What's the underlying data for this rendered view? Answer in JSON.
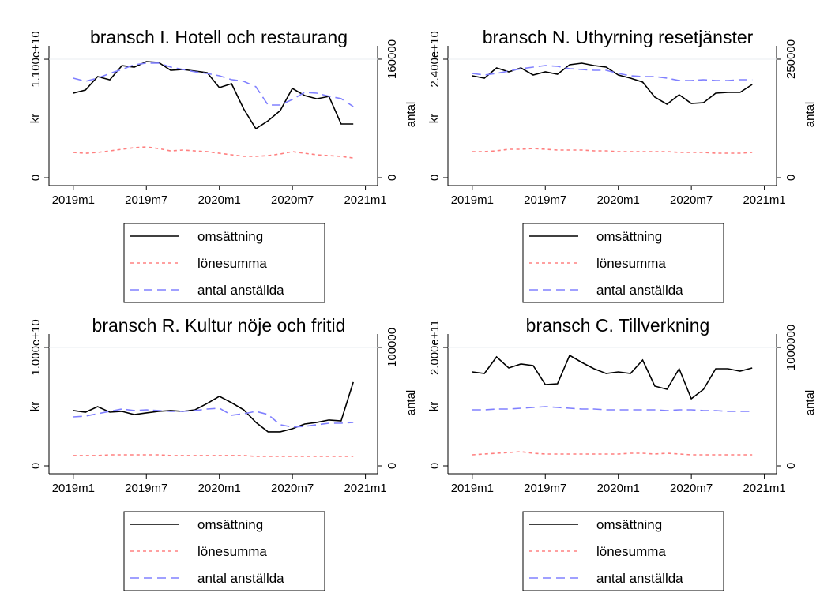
{
  "chart_data": [
    {
      "type": "line",
      "title": "bransch I. Hotell och restaurang",
      "ylabel": "kr",
      "y2label": "antal",
      "x": [
        "2019m1",
        "2019m2",
        "2019m3",
        "2019m4",
        "2019m5",
        "2019m6",
        "2019m7",
        "2019m8",
        "2019m9",
        "2019m10",
        "2019m11",
        "2019m12",
        "2020m1",
        "2020m2",
        "2020m3",
        "2020m4",
        "2020m5",
        "2020m6",
        "2020m7",
        "2020m8",
        "2020m9",
        "2020m10",
        "2020m11",
        "2020m12"
      ],
      "xlim": [
        "2018m11",
        "2021m2"
      ],
      "xticks": [
        "2019m1",
        "2019m7",
        "2020m1",
        "2020m7",
        "2021m1"
      ],
      "ylim": [
        -730000000,
        12250000000
      ],
      "yticks": [
        0,
        {
          "value": 11000000000,
          "label": "1.100e+10"
        }
      ],
      "y2lim": [
        -10667,
        178100
      ],
      "y2ticks": [
        0,
        160000
      ],
      "grid": true,
      "series": [
        {
          "name": "omsättning",
          "color": "#000000",
          "dash": "solid",
          "values": [
            7850000000,
            8140000000,
            9390000000,
            9090000000,
            10410000000,
            10270000000,
            10780000000,
            10710000000,
            9970000000,
            10050000000,
            9900000000,
            9750000000,
            8360000000,
            8730000000,
            6380000000,
            4550000000,
            5280000000,
            6230000000,
            8290000000,
            7630000000,
            7330000000,
            7550000000,
            4990000000,
            4990000000
          ]
        },
        {
          "name": "lönesumma",
          "color": "#ff8080",
          "dash": "short",
          "values": [
            2350000000,
            2270000000,
            2350000000,
            2490000000,
            2640000000,
            2790000000,
            2860000000,
            2710000000,
            2490000000,
            2570000000,
            2490000000,
            2420000000,
            2270000000,
            2130000000,
            1980000000,
            1980000000,
            2050000000,
            2200000000,
            2420000000,
            2270000000,
            2130000000,
            2050000000,
            1980000000,
            1830000000
          ]
        },
        {
          "name": "antal anställda",
          "color": "#8080ff",
          "dash": "long",
          "axis": "y2",
          "values": [
            134400,
            130100,
            134400,
            140800,
            146100,
            152500,
            154700,
            154700,
            149300,
            146100,
            142900,
            140800,
            137600,
            132300,
            130100,
            122700,
            98100,
            98100,
            105600,
            115200,
            114100,
            109900,
            106700,
            96000
          ]
        }
      ]
    },
    {
      "type": "line",
      "title": "bransch N. Uthyrning resetjänster",
      "ylabel": "kr",
      "y2label": "antal",
      "x": [
        "2019m1",
        "2019m2",
        "2019m3",
        "2019m4",
        "2019m5",
        "2019m6",
        "2019m7",
        "2019m8",
        "2019m9",
        "2019m10",
        "2019m11",
        "2019m12",
        "2020m1",
        "2020m2",
        "2020m3",
        "2020m4",
        "2020m5",
        "2020m6",
        "2020m7",
        "2020m8",
        "2020m9",
        "2020m10",
        "2020m11",
        "2020m12"
      ],
      "xlim": [
        "2018m11",
        "2021m2"
      ],
      "xticks": [
        "2019m1",
        "2019m7",
        "2020m1",
        "2020m7",
        "2021m1"
      ],
      "ylim": [
        -1600000000,
        26720000000
      ],
      "yticks": [
        0,
        {
          "value": 24000000000,
          "label": "2.400e+10"
        }
      ],
      "y2lim": [
        -16667,
        278300
      ],
      "y2ticks": [
        0,
        250000
      ],
      "grid": true,
      "series": [
        {
          "name": "omsättning",
          "color": "#000000",
          "dash": "solid",
          "values": [
            20640000000,
            20160000000,
            22240000000,
            21440000000,
            22240000000,
            20800000000,
            21440000000,
            20960000000,
            22880000000,
            23200000000,
            22720000000,
            22400000000,
            20800000000,
            20160000000,
            19360000000,
            16320000000,
            14880000000,
            16800000000,
            15040000000,
            15200000000,
            17120000000,
            17280000000,
            17280000000,
            18880000000
          ]
        },
        {
          "name": "lönesumma",
          "color": "#ff8080",
          "dash": "short",
          "values": [
            5280000000,
            5280000000,
            5440000000,
            5760000000,
            5760000000,
            5920000000,
            5760000000,
            5600000000,
            5600000000,
            5600000000,
            5440000000,
            5440000000,
            5280000000,
            5280000000,
            5280000000,
            5280000000,
            5280000000,
            5120000000,
            5120000000,
            5120000000,
            4960000000,
            4960000000,
            4960000000,
            5120000000
          ]
        },
        {
          "name": "antal anställda",
          "color": "#8080ff",
          "dash": "long",
          "axis": "y2",
          "values": [
            220000,
            216700,
            220000,
            225000,
            230000,
            233300,
            236700,
            235000,
            230000,
            228300,
            226700,
            226700,
            220000,
            215000,
            213300,
            213300,
            210000,
            205000,
            205000,
            206700,
            205000,
            205000,
            206700,
            206700
          ]
        }
      ]
    },
    {
      "type": "line",
      "title": "bransch R. Kultur nöje och fritid",
      "ylabel": "kr",
      "y2label": "antal",
      "x": [
        "2019m1",
        "2019m2",
        "2019m3",
        "2019m4",
        "2019m5",
        "2019m6",
        "2019m7",
        "2019m8",
        "2019m9",
        "2019m10",
        "2019m11",
        "2019m12",
        "2020m1",
        "2020m2",
        "2020m3",
        "2020m4",
        "2020m5",
        "2020m6",
        "2020m7",
        "2020m8",
        "2020m9",
        "2020m10",
        "2020m11",
        "2020m12"
      ],
      "xlim": [
        "2018m11",
        "2021m2"
      ],
      "xticks": [
        "2019m1",
        "2019m7",
        "2020m1",
        "2020m7",
        "2021m1"
      ],
      "ylim": [
        -667000000,
        11130000000
      ],
      "yticks": [
        0,
        {
          "value": 10000000000,
          "label": "1.000e+10"
        }
      ],
      "y2lim": [
        -6667,
        111300
      ],
      "y2ticks": [
        0,
        100000
      ],
      "grid": true,
      "series": [
        {
          "name": "omsättning",
          "color": "#000000",
          "dash": "solid",
          "values": [
            4670000000,
            4530000000,
            5000000000,
            4530000000,
            4600000000,
            4330000000,
            4470000000,
            4600000000,
            4670000000,
            4600000000,
            4730000000,
            5270000000,
            5870000000,
            5330000000,
            4730000000,
            3670000000,
            2870000000,
            2870000000,
            3130000000,
            3530000000,
            3670000000,
            3870000000,
            3800000000,
            7070000000
          ]
        },
        {
          "name": "lönesumma",
          "color": "#ff8080",
          "dash": "short",
          "values": [
            870000000,
            870000000,
            870000000,
            930000000,
            930000000,
            930000000,
            930000000,
            930000000,
            870000000,
            870000000,
            870000000,
            870000000,
            870000000,
            870000000,
            870000000,
            800000000,
            800000000,
            800000000,
            800000000,
            800000000,
            800000000,
            800000000,
            800000000,
            800000000
          ]
        },
        {
          "name": "antal anställda",
          "color": "#8080ff",
          "dash": "long",
          "axis": "y2",
          "values": [
            41300,
            42000,
            44000,
            46000,
            48000,
            46700,
            47300,
            46700,
            46000,
            46000,
            46700,
            48000,
            48700,
            42700,
            44000,
            46000,
            43300,
            34700,
            32700,
            33300,
            34700,
            36000,
            36000,
            36700
          ]
        }
      ]
    },
    {
      "type": "line",
      "title": "bransch C. Tillverkning",
      "ylabel": "kr",
      "y2label": "antal",
      "x": [
        "2019m1",
        "2019m2",
        "2019m3",
        "2019m4",
        "2019m5",
        "2019m6",
        "2019m7",
        "2019m8",
        "2019m9",
        "2019m10",
        "2019m11",
        "2019m12",
        "2020m1",
        "2020m2",
        "2020m3",
        "2020m4",
        "2020m5",
        "2020m6",
        "2020m7",
        "2020m8",
        "2020m9",
        "2020m10",
        "2020m11",
        "2020m12"
      ],
      "xlim": [
        "2018m11",
        "2021m2"
      ],
      "xticks": [
        "2019m1",
        "2019m7",
        "2020m1",
        "2020m7",
        "2021m1"
      ],
      "ylim": [
        -13330000000,
        222700000000
      ],
      "yticks": [
        0,
        {
          "value": 200000000000,
          "label": "2.000e+11"
        }
      ],
      "y2lim": [
        -66667,
        1113300
      ],
      "y2ticks": [
        0,
        1000000
      ],
      "grid": true,
      "series": [
        {
          "name": "omsättning",
          "color": "#000000",
          "dash": "solid",
          "values": [
            158700000000,
            156000000000,
            184000000000,
            165300000000,
            172000000000,
            169300000000,
            137300000000,
            138700000000,
            186700000000,
            174700000000,
            164000000000,
            156000000000,
            158700000000,
            156000000000,
            178700000000,
            134700000000,
            129300000000,
            164000000000,
            113300000000,
            129300000000,
            164000000000,
            164000000000,
            160000000000,
            165300000000
          ]
        },
        {
          "name": "lönesumma",
          "color": "#ff8080",
          "dash": "short",
          "values": [
            18700000000,
            20000000000,
            21300000000,
            22700000000,
            24000000000,
            21300000000,
            20000000000,
            20000000000,
            20000000000,
            20000000000,
            20000000000,
            20000000000,
            20000000000,
            21300000000,
            21300000000,
            20000000000,
            21300000000,
            20000000000,
            18700000000,
            18700000000,
            18700000000,
            18700000000,
            18700000000,
            18700000000
          ]
        },
        {
          "name": "antal anställda",
          "color": "#8080ff",
          "dash": "long",
          "axis": "y2",
          "values": [
            473300,
            473300,
            480000,
            480000,
            486700,
            493300,
            500000,
            493300,
            486700,
            480000,
            480000,
            473300,
            473300,
            473300,
            473300,
            473300,
            466700,
            473300,
            473300,
            466700,
            466700,
            460000,
            460000,
            460000
          ]
        }
      ]
    }
  ]
}
